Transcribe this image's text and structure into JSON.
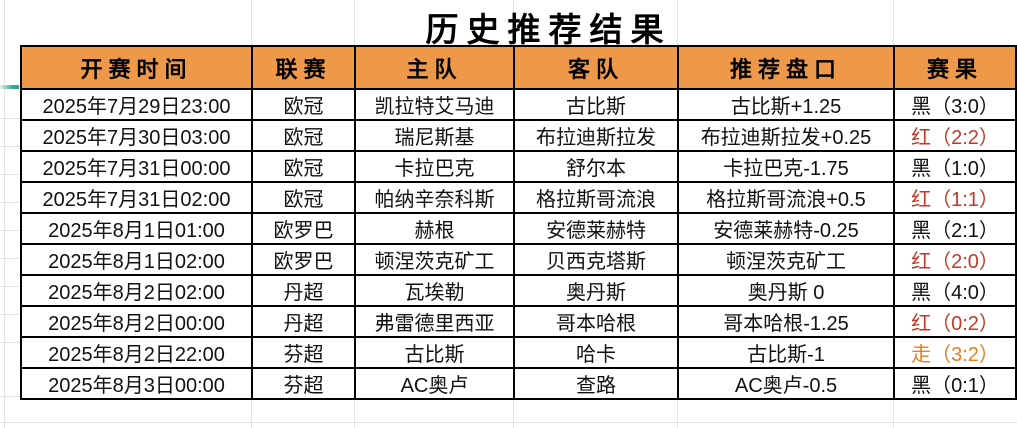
{
  "title": "历史推荐结果",
  "table": {
    "headers": [
      "开赛时间",
      "联赛",
      "主队",
      "客队",
      "推荐盘口",
      "赛果"
    ],
    "rows": [
      {
        "time": "2025年7月29日23:00",
        "league": "欧冠",
        "home": "凯拉特艾马迪",
        "away": "古比斯",
        "handicap": "古比斯+1.25",
        "result": "黑（3:0）",
        "result_color": "black"
      },
      {
        "time": "2025年7月30日03:00",
        "league": "欧冠",
        "home": "瑞尼斯基",
        "away": "布拉迪斯拉发",
        "handicap": "布拉迪斯拉发+0.25",
        "result": "红（2:2）",
        "result_color": "red"
      },
      {
        "time": "2025年7月31日00:00",
        "league": "欧冠",
        "home": "卡拉巴克",
        "away": "舒尔本",
        "handicap": "卡拉巴克-1.75",
        "result": "黑（1:0）",
        "result_color": "black"
      },
      {
        "time": "2025年7月31日02:00",
        "league": "欧冠",
        "home": "帕纳辛奈科斯",
        "away": "格拉斯哥流浪",
        "handicap": "格拉斯哥流浪+0.5",
        "result": "红（1:1）",
        "result_color": "red"
      },
      {
        "time": "2025年8月1日01:00",
        "league": "欧罗巴",
        "home": "赫根",
        "away": "安德莱赫特",
        "handicap": "安德莱赫特-0.25",
        "result": "黑（2:1）",
        "result_color": "black"
      },
      {
        "time": "2025年8月1日02:00",
        "league": "欧罗巴",
        "home": "顿涅茨克矿工",
        "away": "贝西克塔斯",
        "handicap": "顿涅茨克矿工",
        "result": "红（2:0）",
        "result_color": "red"
      },
      {
        "time": "2025年8月2日02:00",
        "league": "丹超",
        "home": "瓦埃勒",
        "away": "奥丹斯",
        "handicap": "奥丹斯 0",
        "result": "黑（4:0）",
        "result_color": "black"
      },
      {
        "time": "2025年8月2日00:00",
        "league": "丹超",
        "home": "弗雷德里西亚",
        "away": "哥本哈根",
        "handicap": "哥本哈根-1.25",
        "result": "红（0:2）",
        "result_color": "red"
      },
      {
        "time": "2025年8月2日22:00",
        "league": "芬超",
        "home": "古比斯",
        "away": "哈卡",
        "handicap": "古比斯-1",
        "result": "走（3:2）",
        "result_color": "orange"
      },
      {
        "time": "2025年8月3日00:00",
        "league": "芬超",
        "home": "AC奥卢",
        "away": "查路",
        "handicap": "AC奥卢-0.5",
        "result": "黑（0:1）",
        "result_color": "black"
      }
    ]
  },
  "colors": {
    "header_bg": "#EE9849",
    "border": "#000000",
    "text": "#111111",
    "result_black": "#111111",
    "result_red": "#C0392B",
    "result_orange": "#E67E22",
    "row_marker_green": "#2FA98C"
  }
}
